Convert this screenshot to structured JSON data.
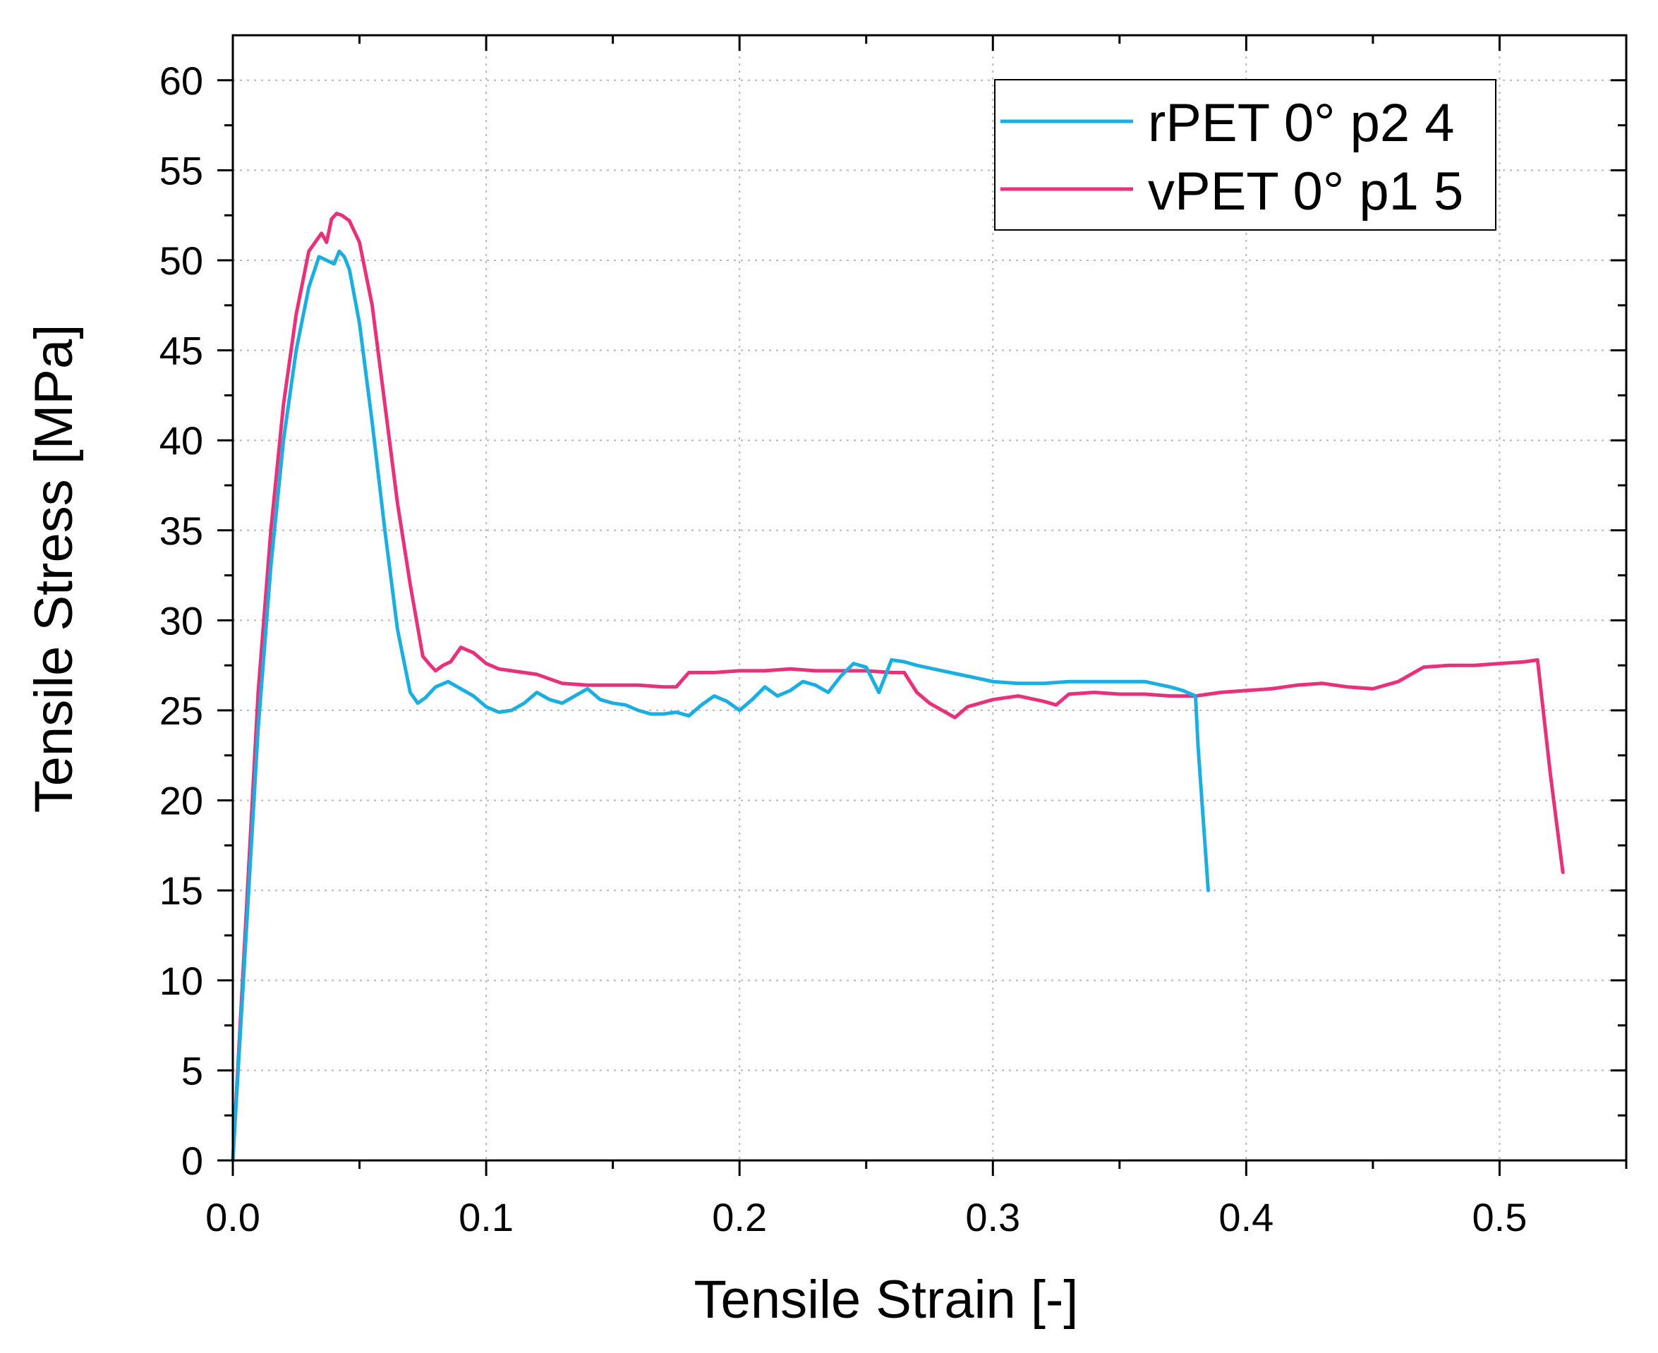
{
  "chart_data": {
    "type": "line",
    "xlabel": "Tensile Strain [-]",
    "ylabel": "Tensile Stress [MPa]",
    "xlim": [
      0,
      0.55
    ],
    "ylim": [
      0,
      62.5
    ],
    "x_ticks": [
      "0.0",
      "0.1",
      "0.2",
      "0.3",
      "0.4",
      "0.5"
    ],
    "x_tick_values": [
      0,
      0.1,
      0.2,
      0.3,
      0.4,
      0.5
    ],
    "y_ticks": [
      "0",
      "5",
      "10",
      "15",
      "20",
      "25",
      "30",
      "35",
      "40",
      "45",
      "50",
      "55",
      "60"
    ],
    "y_tick_values": [
      0,
      5,
      10,
      15,
      20,
      25,
      30,
      35,
      40,
      45,
      50,
      55,
      60
    ],
    "grid": true,
    "legend_position": "top-right",
    "series": [
      {
        "name": "rPET 0° p2 4",
        "color": "#1aafe0",
        "x": [
          0,
          0.005,
          0.01,
          0.015,
          0.02,
          0.025,
          0.03,
          0.034,
          0.037,
          0.04,
          0.042,
          0.044,
          0.046,
          0.05,
          0.055,
          0.06,
          0.065,
          0.07,
          0.073,
          0.076,
          0.08,
          0.085,
          0.09,
          0.095,
          0.1,
          0.105,
          0.11,
          0.115,
          0.12,
          0.125,
          0.13,
          0.135,
          0.14,
          0.145,
          0.15,
          0.155,
          0.16,
          0.165,
          0.17,
          0.175,
          0.18,
          0.185,
          0.19,
          0.195,
          0.2,
          0.205,
          0.21,
          0.215,
          0.22,
          0.225,
          0.23,
          0.235,
          0.24,
          0.245,
          0.25,
          0.255,
          0.26,
          0.265,
          0.27,
          0.28,
          0.29,
          0.3,
          0.31,
          0.32,
          0.33,
          0.34,
          0.35,
          0.36,
          0.37,
          0.375,
          0.38,
          0.381,
          0.383,
          0.385
        ],
        "y": [
          0,
          12,
          24,
          33,
          40,
          45,
          48.5,
          50.2,
          50.0,
          49.8,
          50.5,
          50.2,
          49.5,
          46.5,
          41,
          35,
          29.5,
          26,
          25.4,
          25.7,
          26.3,
          26.6,
          26.2,
          25.8,
          25.2,
          24.9,
          25.0,
          25.4,
          26.0,
          25.6,
          25.4,
          25.8,
          26.2,
          25.6,
          25.4,
          25.3,
          25.0,
          24.8,
          24.8,
          24.9,
          24.7,
          25.3,
          25.8,
          25.5,
          25.0,
          25.6,
          26.3,
          25.8,
          26.1,
          26.6,
          26.4,
          26.0,
          26.9,
          27.6,
          27.4,
          26.0,
          27.8,
          27.7,
          27.5,
          27.2,
          26.9,
          26.6,
          26.5,
          26.5,
          26.6,
          26.6,
          26.6,
          26.6,
          26.3,
          26.1,
          25.8,
          23.0,
          19.0,
          15.0
        ]
      },
      {
        "name": "vPET 0° p1 5",
        "color": "#e8317a",
        "x": [
          0,
          0.005,
          0.01,
          0.015,
          0.02,
          0.025,
          0.03,
          0.035,
          0.037,
          0.039,
          0.041,
          0.043,
          0.046,
          0.05,
          0.055,
          0.06,
          0.065,
          0.07,
          0.075,
          0.078,
          0.08,
          0.083,
          0.086,
          0.09,
          0.095,
          0.1,
          0.105,
          0.11,
          0.12,
          0.13,
          0.14,
          0.15,
          0.16,
          0.17,
          0.175,
          0.18,
          0.19,
          0.2,
          0.21,
          0.22,
          0.23,
          0.24,
          0.25,
          0.26,
          0.265,
          0.27,
          0.275,
          0.28,
          0.285,
          0.29,
          0.3,
          0.31,
          0.32,
          0.325,
          0.33,
          0.34,
          0.35,
          0.36,
          0.37,
          0.38,
          0.39,
          0.4,
          0.41,
          0.42,
          0.43,
          0.44,
          0.45,
          0.46,
          0.47,
          0.48,
          0.49,
          0.5,
          0.51,
          0.515,
          0.52,
          0.525
        ],
        "y": [
          0,
          13,
          26,
          35,
          42,
          47,
          50.5,
          51.5,
          51.0,
          52.3,
          52.6,
          52.5,
          52.2,
          51.0,
          47.5,
          42,
          36.5,
          32,
          28,
          27.5,
          27.2,
          27.5,
          27.7,
          28.5,
          28.2,
          27.6,
          27.3,
          27.2,
          27.0,
          26.5,
          26.4,
          26.4,
          26.4,
          26.3,
          26.3,
          27.1,
          27.1,
          27.2,
          27.2,
          27.3,
          27.2,
          27.2,
          27.2,
          27.1,
          27.1,
          26.0,
          25.4,
          25.0,
          24.6,
          25.2,
          25.6,
          25.8,
          25.5,
          25.3,
          25.9,
          26.0,
          25.9,
          25.9,
          25.8,
          25.8,
          26.0,
          26.1,
          26.2,
          26.4,
          26.5,
          26.3,
          26.2,
          26.6,
          27.4,
          27.5,
          27.5,
          27.6,
          27.7,
          27.8,
          21.5,
          16.0
        ]
      }
    ]
  }
}
